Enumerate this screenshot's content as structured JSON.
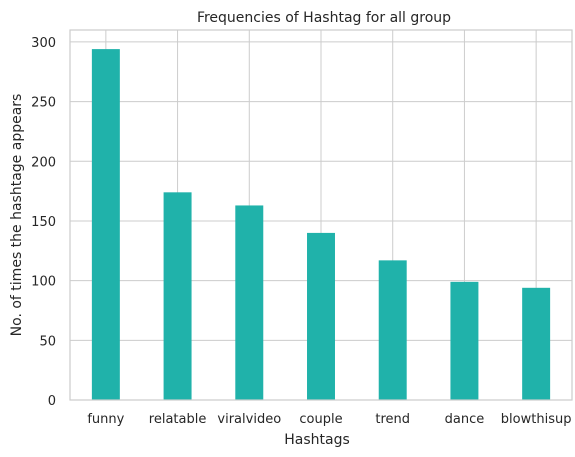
{
  "chart_data": {
    "type": "bar",
    "title": "Frequencies of Hashtag for all group",
    "xlabel": "Hashtags",
    "ylabel": "No. of times the hashtage appears",
    "categories": [
      "funny",
      "relatable",
      "viralvideo",
      "couple",
      "trend",
      "dance",
      "blowthisup"
    ],
    "values": [
      294,
      174,
      163,
      140,
      117,
      99,
      94
    ],
    "ylim": [
      0,
      310
    ],
    "yticks": [
      0,
      50,
      100,
      150,
      200,
      250,
      300
    ],
    "grid": true,
    "bar_color": "#20b2aa"
  }
}
